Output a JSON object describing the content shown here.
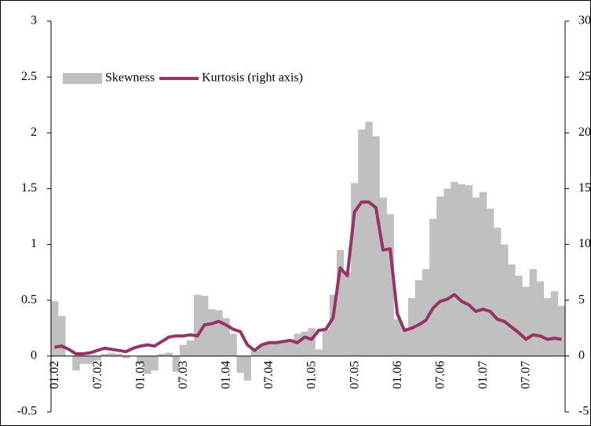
{
  "chart_data": {
    "type": "bar",
    "categories": [
      "01.02",
      null,
      null,
      null,
      null,
      null,
      "07.02",
      null,
      null,
      null,
      null,
      null,
      "01.03",
      null,
      null,
      null,
      null,
      null,
      "07.03",
      null,
      null,
      null,
      null,
      null,
      "01.04",
      null,
      null,
      null,
      null,
      null,
      "07.04",
      null,
      null,
      null,
      null,
      null,
      "01.05",
      null,
      null,
      null,
      null,
      null,
      "07.05",
      null,
      null,
      null,
      null,
      null,
      "01.06",
      null,
      null,
      null,
      null,
      null,
      "07.06",
      null,
      null,
      null,
      null,
      null,
      "01.07",
      null,
      null,
      null,
      null,
      null,
      "07.07",
      null,
      null,
      null,
      null,
      null
    ],
    "series": [
      {
        "name": "Skewness",
        "type": "bar",
        "color": "#c0c0c0",
        "values": [
          0.49,
          0.36,
          0.0,
          -0.13,
          -0.07,
          -0.07,
          -0.04,
          0.02,
          0.03,
          0.02,
          -0.02,
          0.0,
          -0.07,
          -0.16,
          -0.13,
          0.02,
          0.03,
          -0.14,
          0.1,
          0.14,
          0.55,
          0.54,
          0.42,
          0.41,
          0.34,
          0.2,
          -0.15,
          -0.22,
          0.05,
          0.1,
          0.12,
          0.13,
          0.12,
          0.15,
          0.2,
          0.22,
          0.25,
          0.06,
          0.24,
          0.55,
          0.95,
          0.75,
          1.55,
          2.03,
          2.1,
          1.97,
          1.42,
          1.27,
          0.33,
          0.25,
          0.52,
          0.68,
          0.78,
          1.23,
          1.43,
          1.5,
          1.56,
          1.54,
          1.53,
          1.42,
          1.47,
          1.32,
          1.15,
          1.0,
          0.82,
          0.72,
          0.62,
          0.78,
          0.67,
          0.52,
          0.58,
          0.45
        ]
      },
      {
        "name": "Kurtosis (right axis)",
        "type": "line",
        "axis": "y2",
        "color": "#993366",
        "values": [
          0.8,
          0.9,
          0.6,
          0.2,
          0.2,
          0.3,
          0.5,
          0.7,
          0.6,
          0.5,
          0.4,
          0.7,
          0.9,
          1.0,
          0.9,
          1.3,
          1.7,
          1.8,
          1.8,
          1.9,
          1.8,
          2.8,
          2.9,
          3.1,
          2.8,
          2.4,
          2.2,
          1.0,
          0.5,
          1.0,
          1.2,
          1.2,
          1.3,
          1.4,
          1.2,
          1.7,
          1.5,
          2.3,
          2.4,
          3.4,
          7.9,
          7.2,
          12.9,
          13.8,
          13.8,
          13.3,
          9.5,
          9.6,
          3.8,
          2.3,
          2.5,
          2.8,
          3.2,
          4.3,
          4.9,
          5.1,
          5.5,
          4.9,
          4.6,
          4.0,
          4.2,
          4.0,
          3.3,
          3.1,
          2.6,
          2.1,
          1.5,
          1.9,
          1.8,
          1.5,
          1.6,
          1.5
        ]
      }
    ],
    "ylim": [
      -0.5,
      3
    ],
    "yticks": [
      -0.5,
      0,
      0.5,
      1,
      1.5,
      2,
      2.5,
      3
    ],
    "y2lim": [
      -5,
      30
    ],
    "y2ticks": [
      -5,
      0,
      5,
      10,
      15,
      20,
      25,
      30
    ],
    "legend": "top-left"
  }
}
